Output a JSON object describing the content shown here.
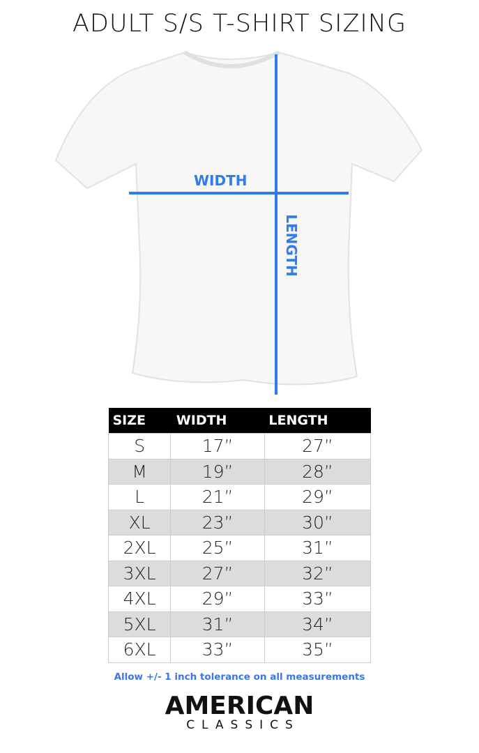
{
  "title": "ADULT S/S T-SHIRT SIZING",
  "diagram": {
    "width_label": "WIDTH",
    "length_label": "LENGTH",
    "line_color": "#2f7cf0"
  },
  "table": {
    "headers": [
      "SIZE",
      "WIDTH",
      "LENGTH"
    ],
    "rows": [
      [
        "S",
        "17”",
        "27”"
      ],
      [
        "M",
        "19”",
        "28”"
      ],
      [
        "L",
        "21”",
        "29”"
      ],
      [
        "XL",
        "23”",
        "30”"
      ],
      [
        "2XL",
        "25”",
        "31”"
      ],
      [
        "3XL",
        "27”",
        "32”"
      ],
      [
        "4XL",
        "29”",
        "33”"
      ],
      [
        "5XL",
        "31”",
        "34”"
      ],
      [
        "6XL",
        "33”",
        "35”"
      ]
    ]
  },
  "note": "Allow +/- 1 inch tolerance on all measurements",
  "logo": {
    "line1": "AMERICAN",
    "line2": "CLASSICS"
  }
}
